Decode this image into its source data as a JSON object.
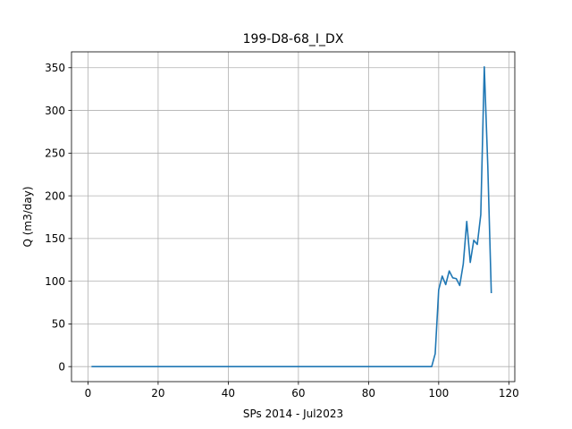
{
  "chart_data": {
    "type": "line",
    "title": "199-D8-68_I_DX",
    "xlabel": "SPs 2014 - Jul2023",
    "ylabel": "Q (m3/day)",
    "xlim": [
      -4.7,
      121.7
    ],
    "ylim": [
      -17.6,
      368.6
    ],
    "xticks": [
      0,
      20,
      40,
      60,
      80,
      100,
      120
    ],
    "yticks": [
      0,
      50,
      100,
      150,
      200,
      250,
      300,
      350
    ],
    "grid": true,
    "line_color": "#1f77b4",
    "series": [
      {
        "x": [
          1,
          2,
          3,
          4,
          5,
          6,
          7,
          8,
          9,
          10,
          11,
          12,
          13,
          14,
          15,
          16,
          17,
          18,
          19,
          20,
          21,
          22,
          23,
          24,
          25,
          26,
          27,
          28,
          29,
          30,
          31,
          32,
          33,
          34,
          35,
          36,
          37,
          38,
          39,
          40,
          41,
          42,
          43,
          44,
          45,
          46,
          47,
          48,
          49,
          50,
          51,
          52,
          53,
          54,
          55,
          56,
          57,
          58,
          59,
          60,
          61,
          62,
          63,
          64,
          65,
          66,
          67,
          68,
          69,
          70,
          71,
          72,
          73,
          74,
          75,
          76,
          77,
          78,
          79,
          80,
          81,
          82,
          83,
          84,
          85,
          86,
          87,
          88,
          89,
          90,
          91,
          92,
          93,
          94,
          95,
          96,
          97,
          98,
          99,
          100,
          101,
          102,
          103,
          104,
          105,
          106,
          107,
          108,
          109,
          110,
          111,
          112,
          113,
          114,
          115
        ],
        "values": [
          0,
          0,
          0,
          0,
          0,
          0,
          0,
          0,
          0,
          0,
          0,
          0,
          0,
          0,
          0,
          0,
          0,
          0,
          0,
          0,
          0,
          0,
          0,
          0,
          0,
          0,
          0,
          0,
          0,
          0,
          0,
          0,
          0,
          0,
          0,
          0,
          0,
          0,
          0,
          0,
          0,
          0,
          0,
          0,
          0,
          0,
          0,
          0,
          0,
          0,
          0,
          0,
          0,
          0,
          0,
          0,
          0,
          0,
          0,
          0,
          0,
          0,
          0,
          0,
          0,
          0,
          0,
          0,
          0,
          0,
          0,
          0,
          0,
          0,
          0,
          0,
          0,
          0,
          0,
          0,
          0,
          0,
          0,
          0,
          0,
          0,
          0,
          0,
          0,
          0,
          0,
          0,
          0,
          0,
          0,
          0,
          0,
          0,
          15,
          90,
          106,
          96,
          112,
          104,
          103,
          95,
          120,
          170,
          122,
          148,
          143,
          178,
          351,
          235,
          86
        ]
      }
    ]
  }
}
